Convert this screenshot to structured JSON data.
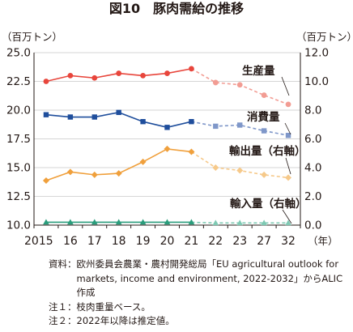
{
  "title": "図10　豚肉需給の推移",
  "axis": {
    "left_unit": "（百万トン）",
    "right_unit": "（百万トン）",
    "x_unit": "（年）"
  },
  "notes": {
    "source_label": "資料：",
    "source_text": "欧州委員会農業・農村開発総局「EU agricultural outlook for markets, income and environment, 2022-2032」からALIC作成",
    "note1": "注１：枝肉重量ベース。",
    "note2": "注２：2022年以降は推定値。"
  },
  "chart_data": {
    "type": "line",
    "title": "図10　豚肉需給の推移",
    "categories": [
      "2015",
      "16",
      "17",
      "18",
      "19",
      "20",
      "21",
      "22",
      "23",
      "27",
      "32"
    ],
    "estimate_from": "22",
    "y_left": {
      "label": "（百万トン）",
      "min": 10.0,
      "max": 25.0,
      "step": 2.5,
      "ticks": [
        "10.0",
        "12.5",
        "15.0",
        "17.5",
        "20.0",
        "22.5",
        "25.0"
      ]
    },
    "y_right": {
      "label": "（百万トン）",
      "min": 0.0,
      "max": 12.0,
      "step": 2.0,
      "ticks": [
        "0.0",
        "2.0",
        "4.0",
        "6.0",
        "8.0",
        "10.0",
        "12.0"
      ]
    },
    "grid": true,
    "series": [
      {
        "name": "生産量",
        "axis": "left",
        "color": "#e8463c",
        "estimate_color": "#f29c93",
        "marker": "circle",
        "values": [
          22.5,
          23.0,
          22.8,
          23.2,
          23.0,
          23.2,
          23.6,
          22.4,
          22.2,
          21.3,
          20.5
        ]
      },
      {
        "name": "消費量",
        "axis": "left",
        "color": "#1f4e9c",
        "estimate_color": "#7f97c9",
        "marker": "square",
        "values": [
          19.6,
          19.4,
          19.4,
          19.8,
          19.0,
          18.5,
          19.0,
          18.6,
          18.7,
          18.2,
          17.8
        ]
      },
      {
        "name": "輸出量（右軸）",
        "axis": "right",
        "color": "#f0a03c",
        "estimate_color": "#f6c98a",
        "marker": "diamond",
        "values": [
          3.1,
          3.7,
          3.5,
          3.6,
          4.4,
          5.3,
          5.1,
          4.0,
          3.8,
          3.5,
          3.3
        ]
      },
      {
        "name": "輸入量（右軸）",
        "axis": "right",
        "color": "#2a9d7c",
        "estimate_color": "#7fc9b3",
        "marker": "triangle",
        "values": [
          0.2,
          0.2,
          0.2,
          0.2,
          0.2,
          0.2,
          0.2,
          0.15,
          0.15,
          0.15,
          0.15
        ]
      }
    ]
  }
}
